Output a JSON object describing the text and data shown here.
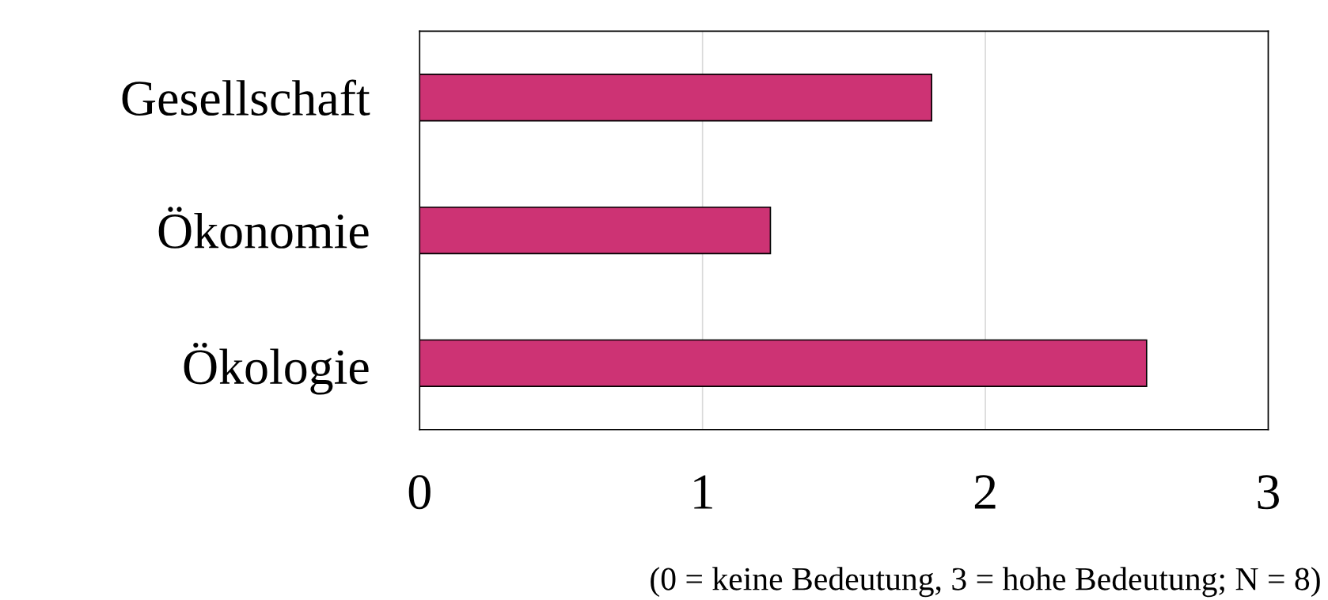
{
  "chart_data": {
    "type": "bar",
    "orientation": "horizontal",
    "categories": [
      "Gesellschaft",
      "Ökonomie",
      "Ökologie"
    ],
    "values": [
      1.81,
      1.24,
      2.57
    ],
    "color": "#cd3374",
    "xlim": [
      0,
      3
    ],
    "xticks": [
      0,
      1,
      2,
      3
    ],
    "grid": "x",
    "legend": false,
    "annotations": [
      "(0 = keine Bedeutung, 3 = hohe Bedeutung; N = 8)"
    ]
  }
}
